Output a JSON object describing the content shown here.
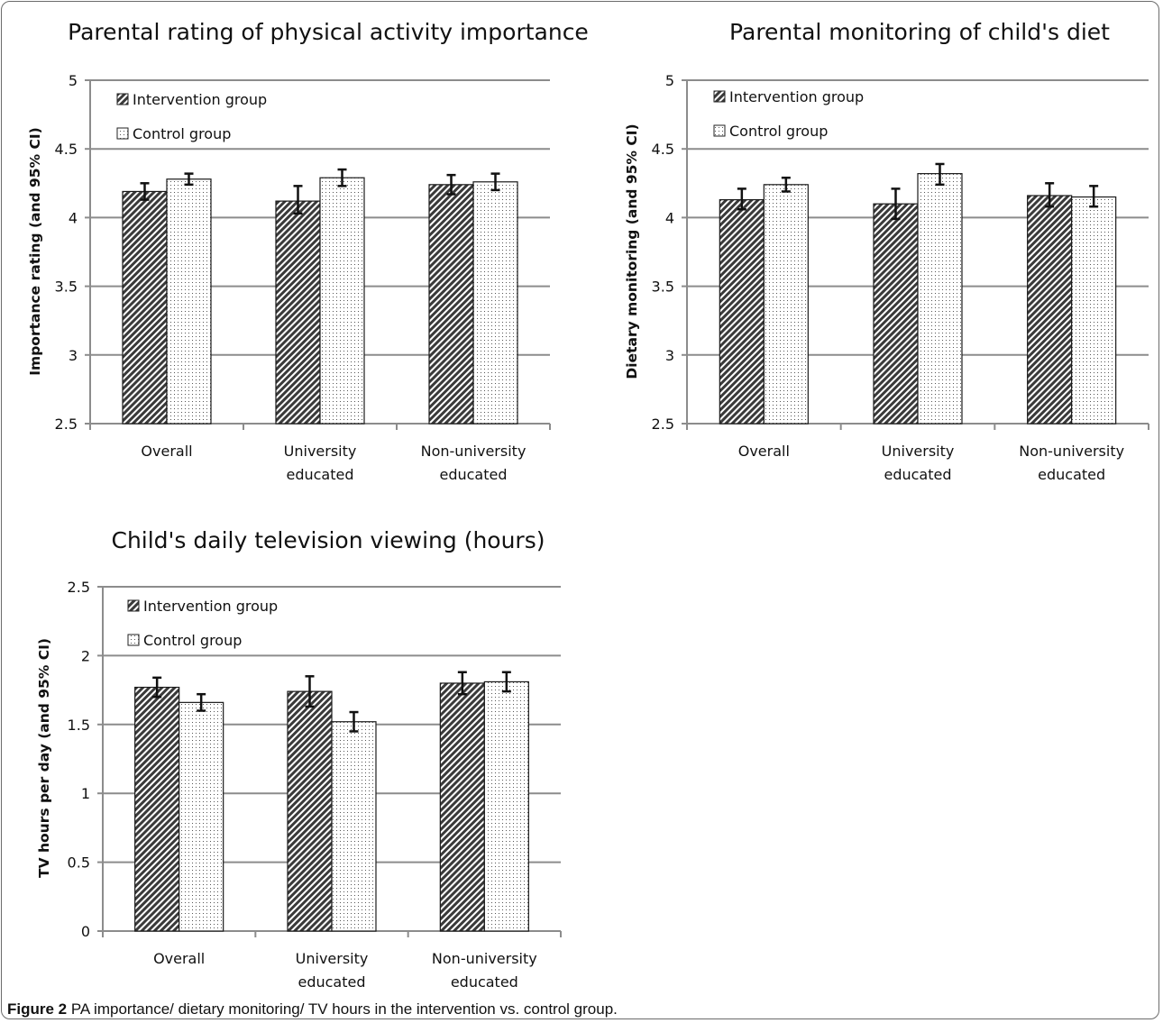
{
  "caption": {
    "label": "Figure 2",
    "text": "PA importance/ dietary monitoring/ TV hours in the intervention vs. control group."
  },
  "chart_data": [
    {
      "type": "bar",
      "title": "Parental rating of physical activity importance",
      "ylabel": "Importance rating (and 95% CI)",
      "categories": [
        [
          "Overall"
        ],
        [
          "University",
          "educated"
        ],
        [
          "Non-university",
          "educated"
        ]
      ],
      "ylim": [
        2.5,
        5
      ],
      "yticks": [
        2.5,
        3,
        3.5,
        4,
        4.5,
        5
      ],
      "ytick_labels": [
        "2.5",
        "3",
        "3.5",
        "4",
        "4.5",
        "5"
      ],
      "grid": true,
      "legend_position": "top-left",
      "series": [
        {
          "name": "Intervention group",
          "pattern": "hatch",
          "values": [
            4.19,
            4.12,
            4.24
          ],
          "ci_low": [
            4.13,
            4.03,
            4.17
          ],
          "ci_high": [
            4.25,
            4.23,
            4.31
          ]
        },
        {
          "name": "Control group",
          "pattern": "dots",
          "values": [
            4.28,
            4.29,
            4.26
          ],
          "ci_low": [
            4.24,
            4.23,
            4.2
          ],
          "ci_high": [
            4.32,
            4.35,
            4.32
          ]
        }
      ]
    },
    {
      "type": "bar",
      "title": "Parental monitoring of child's diet",
      "ylabel": "Dietary monitoring (and 95% CI)",
      "categories": [
        [
          "Overall"
        ],
        [
          "University",
          "educated"
        ],
        [
          "Non-university",
          "educated"
        ]
      ],
      "ylim": [
        2.5,
        5
      ],
      "yticks": [
        2.5,
        3,
        3.5,
        4,
        4.5,
        5
      ],
      "ytick_labels": [
        "2.5",
        "3",
        "3.5",
        "4",
        "4.5",
        "5"
      ],
      "grid": true,
      "legend_position": "top-left",
      "series": [
        {
          "name": "Intervention group",
          "pattern": "hatch",
          "values": [
            4.13,
            4.1,
            4.16
          ],
          "ci_low": [
            4.06,
            3.99,
            4.08
          ],
          "ci_high": [
            4.21,
            4.21,
            4.25
          ]
        },
        {
          "name": "Control group",
          "pattern": "dots",
          "values": [
            4.24,
            4.32,
            4.15
          ],
          "ci_low": [
            4.19,
            4.24,
            4.08
          ],
          "ci_high": [
            4.29,
            4.39,
            4.23
          ]
        }
      ]
    },
    {
      "type": "bar",
      "title": "Child's daily television viewing (hours)",
      "ylabel": "TV hours per day (and 95% CI)",
      "categories": [
        [
          "Overall"
        ],
        [
          "University",
          "educated"
        ],
        [
          "Non-university",
          "educated"
        ]
      ],
      "ylim": [
        0,
        2.5
      ],
      "yticks": [
        0,
        0.5,
        1,
        1.5,
        2,
        2.5
      ],
      "ytick_labels": [
        "0",
        "0.5",
        "1",
        "1.5",
        "2",
        "2.5"
      ],
      "grid": true,
      "legend_position": "top-left",
      "series": [
        {
          "name": "Intervention group",
          "pattern": "hatch",
          "values": [
            1.77,
            1.74,
            1.8
          ],
          "ci_low": [
            1.7,
            1.63,
            1.72
          ],
          "ci_high": [
            1.84,
            1.85,
            1.88
          ]
        },
        {
          "name": "Control group",
          "pattern": "dots",
          "values": [
            1.66,
            1.52,
            1.81
          ],
          "ci_low": [
            1.6,
            1.45,
            1.74
          ],
          "ci_high": [
            1.72,
            1.59,
            1.88
          ]
        }
      ]
    }
  ]
}
